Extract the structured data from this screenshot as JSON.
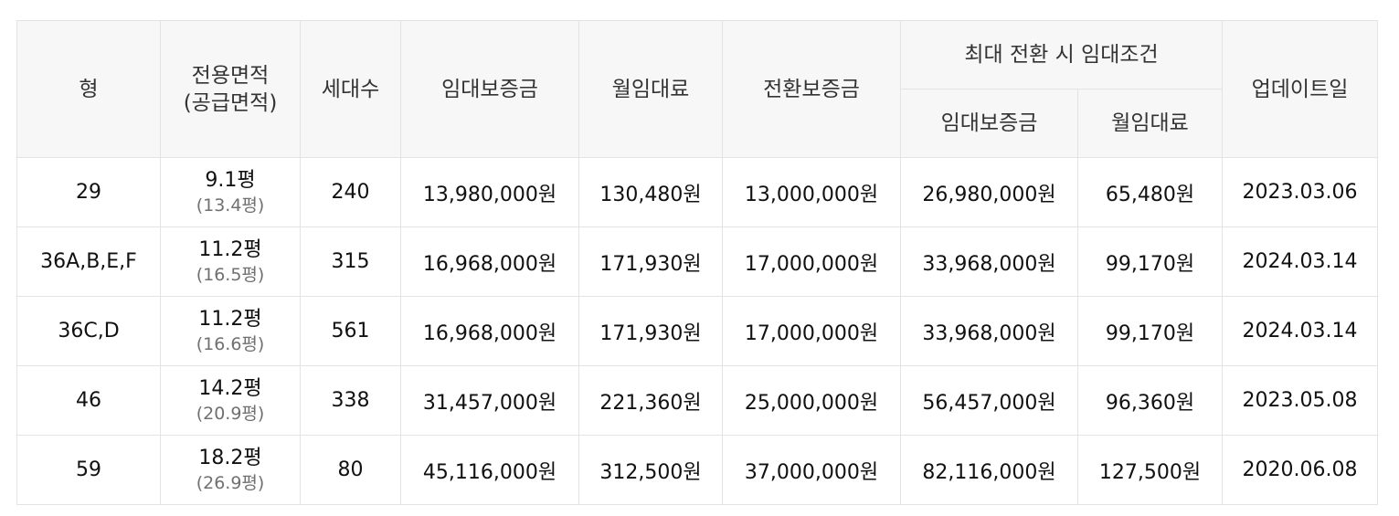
{
  "headers": {
    "type": "형",
    "area_line1": "전용면적",
    "area_line2": "(공급면적)",
    "households": "세대수",
    "deposit": "임대보증금",
    "monthly_rent": "월임대료",
    "conversion_deposit": "전환보증금",
    "max_conversion_group": "최대 전환 시 임대조건",
    "max_deposit": "임대보증금",
    "max_monthly_rent": "월임대료",
    "updated": "업데이트일"
  },
  "rows": [
    {
      "type": "29",
      "area": "9.1평",
      "supply_area": "(13.4평)",
      "households": "240",
      "deposit": "13,980,000원",
      "monthly_rent": "130,480원",
      "conversion_deposit": "13,000,000원",
      "max_deposit": "26,980,000원",
      "max_monthly_rent": "65,480원",
      "updated": "2023.03.06"
    },
    {
      "type": "36A,B,E,F",
      "area": "11.2평",
      "supply_area": "(16.5평)",
      "households": "315",
      "deposit": "16,968,000원",
      "monthly_rent": "171,930원",
      "conversion_deposit": "17,000,000원",
      "max_deposit": "33,968,000원",
      "max_monthly_rent": "99,170원",
      "updated": "2024.03.14"
    },
    {
      "type": "36C,D",
      "area": "11.2평",
      "supply_area": "(16.6평)",
      "households": "561",
      "deposit": "16,968,000원",
      "monthly_rent": "171,930원",
      "conversion_deposit": "17,000,000원",
      "max_deposit": "33,968,000원",
      "max_monthly_rent": "99,170원",
      "updated": "2024.03.14"
    },
    {
      "type": "46",
      "area": "14.2평",
      "supply_area": "(20.9평)",
      "households": "338",
      "deposit": "31,457,000원",
      "monthly_rent": "221,360원",
      "conversion_deposit": "25,000,000원",
      "max_deposit": "56,457,000원",
      "max_monthly_rent": "96,360원",
      "updated": "2023.05.08"
    },
    {
      "type": "59",
      "area": "18.2평",
      "supply_area": "(26.9평)",
      "households": "80",
      "deposit": "45,116,000원",
      "monthly_rent": "312,500원",
      "conversion_deposit": "37,000,000원",
      "max_deposit": "82,116,000원",
      "max_monthly_rent": "127,500원",
      "updated": "2020.06.08"
    }
  ]
}
